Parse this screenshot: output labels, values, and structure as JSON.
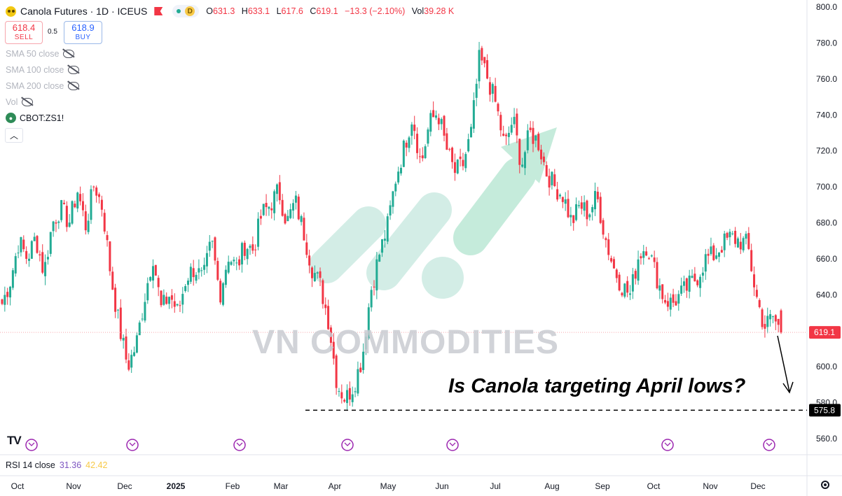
{
  "header": {
    "symbol_title": "Canola Futures · 1D · ICEUS",
    "pill_letter": "D",
    "ohlc": [
      {
        "key": "O",
        "value": "631.3"
      },
      {
        "key": "H",
        "value": "633.1"
      },
      {
        "key": "L",
        "value": "617.6"
      },
      {
        "key": "C",
        "value": "619.1"
      }
    ],
    "change": "−13.3 (−2.10%)",
    "volume_label": "Vol",
    "volume_value": "39.28 K"
  },
  "trade": {
    "sell_price": "618.4",
    "sell_label": "SELL",
    "spread": "0.5",
    "buy_price": "618.9",
    "buy_label": "BUY"
  },
  "indicators": [
    "SMA 50 close",
    "SMA 100 close",
    "SMA 200 close",
    "Vol"
  ],
  "compare_symbol": "CBOT:ZS1!",
  "rsi": {
    "label": "RSI 14 close",
    "value1": "31.36",
    "value2": "42.42"
  },
  "annotation": "Is Canola targeting April lows?",
  "watermark": "VN COMMODITIES",
  "colors": {
    "up": "#22ab94",
    "down": "#f23645",
    "accent": "#2962ff"
  },
  "chart_data": {
    "type": "candlestick",
    "y_ticks": [
      "800.0",
      "780.0",
      "760.0",
      "740.0",
      "720.0",
      "700.0",
      "680.0",
      "660.0",
      "640.0",
      "620.0",
      "600.0",
      "580.0",
      "560.0"
    ],
    "ylim": [
      560,
      800
    ],
    "x_ticks": [
      "Oct",
      "Nov",
      "Dec",
      "2025",
      "Feb",
      "Mar",
      "Apr",
      "May",
      "Jun",
      "Jul",
      "Aug",
      "Sep",
      "Oct",
      "Nov",
      "Dec"
    ],
    "last_price": 619.1,
    "last_price_label": "619.1",
    "support_level": 575.8,
    "support_label": "575.8",
    "series": [
      {
        "name": "Canola Futures",
        "close_anchors": [
          635,
          648,
          670,
          660,
          672,
          652,
          680,
          688,
          680,
          698,
          678,
          702,
          688,
          650,
          622,
          600,
          612,
          638,
          662,
          632,
          640,
          630,
          650,
          655,
          648,
          670,
          640,
          662,
          655,
          668,
          665,
          685,
          690,
          698,
          680,
          692,
          675,
          655,
          645,
          625,
          590,
          582,
          590,
          605,
          642,
          662,
          678,
          705,
          722,
          740,
          712,
          735,
          742,
          722,
          708,
          712,
          730,
          772,
          760,
          745,
          722,
          738,
          712,
          730,
          725,
          708,
          700,
          695,
          680,
          690,
          685,
          695,
          672,
          655,
          645,
          640,
          662,
          668,
          652,
          638,
          635,
          640,
          645,
          650,
          660,
          662,
          668,
          672,
          670,
          668,
          640,
          622,
          628,
          619.1
        ]
      }
    ]
  }
}
